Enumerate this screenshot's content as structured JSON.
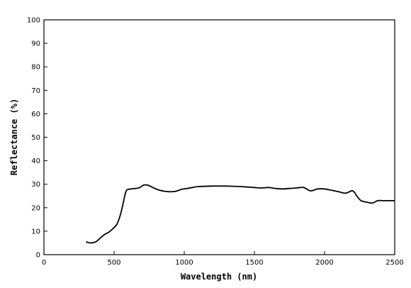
{
  "chart_data": {
    "type": "line",
    "title": "",
    "xlabel": "Wavelength (nm)",
    "ylabel": "Reflectance (%)",
    "xlim": [
      0,
      2500
    ],
    "ylim": [
      0,
      100
    ],
    "xticks": [
      0,
      500,
      1000,
      1500,
      2000,
      2500
    ],
    "yticks": [
      0,
      10,
      20,
      30,
      40,
      50,
      60,
      70,
      80,
      90,
      100
    ],
    "grid": false,
    "legend": "none",
    "line_color": "#000000",
    "series": [
      {
        "x": [
          300,
          330,
          370,
          400,
          430,
          460,
          490,
          520,
          545,
          565,
          580,
          590,
          600,
          620,
          650,
          680,
          710,
          740,
          780,
          820,
          860,
          900,
          940,
          980,
          1020,
          1060,
          1100,
          1200,
          1300,
          1400,
          1450,
          1500,
          1550,
          1600,
          1650,
          1700,
          1750,
          1800,
          1850,
          1900,
          1950,
          2000,
          2050,
          2100,
          2150,
          2200,
          2230,
          2260,
          2300,
          2340,
          2380,
          2420,
          2460,
          2500
        ],
        "y": [
          5.5,
          5,
          5.5,
          7,
          8.5,
          9.5,
          11,
          13,
          17,
          22,
          26,
          27.5,
          27.8,
          28,
          28.2,
          28.5,
          29.6,
          29.6,
          28.5,
          27.5,
          27,
          26.8,
          27,
          27.8,
          28.2,
          28.6,
          29,
          29.2,
          29.2,
          29,
          28.8,
          28.6,
          28.4,
          28.6,
          28.2,
          28,
          28.2,
          28.4,
          28.6,
          27.2,
          28,
          28,
          27.4,
          26.8,
          26.2,
          27.2,
          25,
          23,
          22.4,
          22,
          23,
          23,
          23,
          23
        ]
      }
    ]
  }
}
